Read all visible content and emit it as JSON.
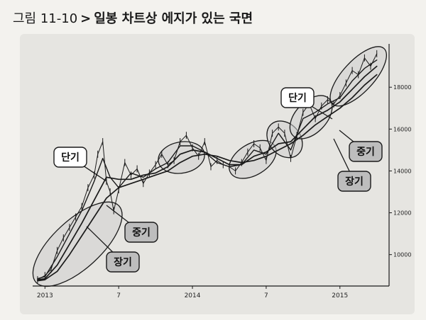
{
  "caption": {
    "figure_number": "그림 11-10",
    "arrow": ">",
    "title": "일봉 차트상 에지가 있는 국면"
  },
  "colors": {
    "background": "#f3f2ee",
    "panel": "#e6e5e1",
    "line": "#1a1a1a",
    "ellipse_fill": "#cfcfcf",
    "callout_fill": "#bdbdbd",
    "callout_fill_light": "#ffffff"
  },
  "chart_data": {
    "type": "line",
    "title": "",
    "xlabel": "",
    "ylabel": "",
    "x_tick_labels": [
      "2013",
      "7",
      "2014",
      "7",
      "2015"
    ],
    "x_tick_positions": [
      0,
      6,
      12,
      18,
      24
    ],
    "y_tick_labels": [
      "10000",
      "12000",
      "14000",
      "16000",
      "18000"
    ],
    "y_tick_values": [
      10000,
      12000,
      14000,
      16000,
      18000
    ],
    "ylim": [
      8500,
      19800
    ],
    "xlim": [
      -1,
      28
    ],
    "grid": false,
    "series": [
      {
        "name": "",
        "role": "price",
        "x": [
          -0.6,
          0,
          0.5,
          1,
          1.5,
          2,
          2.5,
          3,
          3.5,
          4,
          4.3,
          4.7,
          5,
          5.3,
          5.6,
          6,
          6.5,
          7,
          7.5,
          8,
          8.5,
          9,
          9.5,
          10,
          10.5,
          11,
          11.5,
          12,
          12.5,
          13,
          13.5,
          14,
          14.5,
          15,
          15.5,
          16,
          16.5,
          17,
          17.5,
          18,
          18.5,
          19,
          19.5,
          20,
          20.5,
          21,
          21.5,
          22,
          22.5,
          23,
          23.5,
          24,
          24.5,
          25,
          25.5,
          26,
          26.5,
          27
        ],
        "y": [
          8800,
          9000,
          9300,
          10200,
          10800,
          11300,
          11800,
          12300,
          13200,
          13800,
          14800,
          15400,
          13500,
          13000,
          12100,
          13100,
          14400,
          13800,
          14100,
          13400,
          13900,
          14300,
          14800,
          14300,
          14500,
          15400,
          15700,
          15100,
          14700,
          15400,
          14200,
          14500,
          14300,
          14200,
          14000,
          14400,
          14900,
          15300,
          15100,
          14500,
          15800,
          16100,
          15800,
          14600,
          15700,
          16800,
          17200,
          16500,
          17100,
          17400,
          17200,
          17600,
          18200,
          18800,
          18600,
          19400,
          19000,
          19600
        ]
      },
      {
        "name": "단기",
        "role": "short-ma",
        "x": [
          -0.6,
          0,
          1,
          2,
          3,
          4,
          4.7,
          5.3,
          6,
          7,
          8,
          9,
          10,
          11,
          12,
          13,
          14,
          15,
          16,
          17,
          18,
          19,
          20,
          21,
          22,
          23,
          24,
          25,
          26,
          27
        ],
        "y": [
          8850,
          8950,
          9900,
          11000,
          12100,
          13500,
          14600,
          13700,
          13200,
          13900,
          13700,
          14100,
          14400,
          15200,
          15200,
          14900,
          14400,
          14200,
          14300,
          15000,
          14800,
          15800,
          15000,
          16500,
          16800,
          17200,
          17500,
          18300,
          18900,
          19300
        ]
      },
      {
        "name": "중기",
        "role": "mid-ma",
        "x": [
          -0.6,
          0,
          1,
          2,
          3,
          4,
          5,
          6,
          7,
          8,
          9,
          10,
          11,
          12,
          13,
          14,
          15,
          16,
          17,
          18,
          19,
          20,
          21,
          22,
          23,
          24,
          25,
          26,
          27
        ],
        "y": [
          8800,
          8850,
          9500,
          10500,
          11500,
          12600,
          13700,
          13600,
          13600,
          13800,
          13900,
          14200,
          14800,
          15000,
          14900,
          14600,
          14300,
          14300,
          14700,
          14900,
          15300,
          15400,
          16000,
          16600,
          16900,
          17300,
          17900,
          18500,
          19000
        ]
      },
      {
        "name": "장기",
        "role": "long-ma",
        "x": [
          -0.6,
          0,
          1,
          2,
          3,
          4,
          5,
          6,
          7,
          8,
          9,
          10,
          11,
          12,
          13,
          14,
          15,
          16,
          17,
          18,
          19,
          20,
          21,
          22,
          23,
          24,
          25,
          26,
          27
        ],
        "y": [
          8750,
          8800,
          9200,
          10000,
          10900,
          11800,
          12700,
          13200,
          13400,
          13600,
          13800,
          14000,
          14400,
          14700,
          14800,
          14700,
          14500,
          14400,
          14500,
          14700,
          15000,
          15300,
          15700,
          16200,
          16600,
          17000,
          17500,
          18100,
          18600
        ]
      }
    ],
    "highlight_regions": [
      {
        "x_range": [
          -0.3,
          5.6
        ],
        "label": "edge-zone-1"
      },
      {
        "x_range": [
          9.8,
          12.4
        ],
        "label": "edge-zone-2"
      },
      {
        "x_range": [
          15.6,
          18.2
        ],
        "label": "edge-zone-3"
      },
      {
        "x_range": [
          18.8,
          20.2
        ],
        "label": "edge-zone-4"
      },
      {
        "x_range": [
          20.6,
          22.7
        ],
        "label": "edge-zone-5"
      },
      {
        "x_range": [
          23.8,
          27.2
        ],
        "label": "edge-zone-6"
      }
    ],
    "annotations": [
      {
        "id": "left-short",
        "text": "단기",
        "style": "light"
      },
      {
        "id": "left-mid",
        "text": "중기",
        "style": "dark"
      },
      {
        "id": "left-long",
        "text": "장기",
        "style": "dark"
      },
      {
        "id": "right-short",
        "text": "단기",
        "style": "light"
      },
      {
        "id": "right-mid",
        "text": "중기",
        "style": "dark"
      },
      {
        "id": "right-long",
        "text": "장기",
        "style": "dark"
      }
    ]
  }
}
